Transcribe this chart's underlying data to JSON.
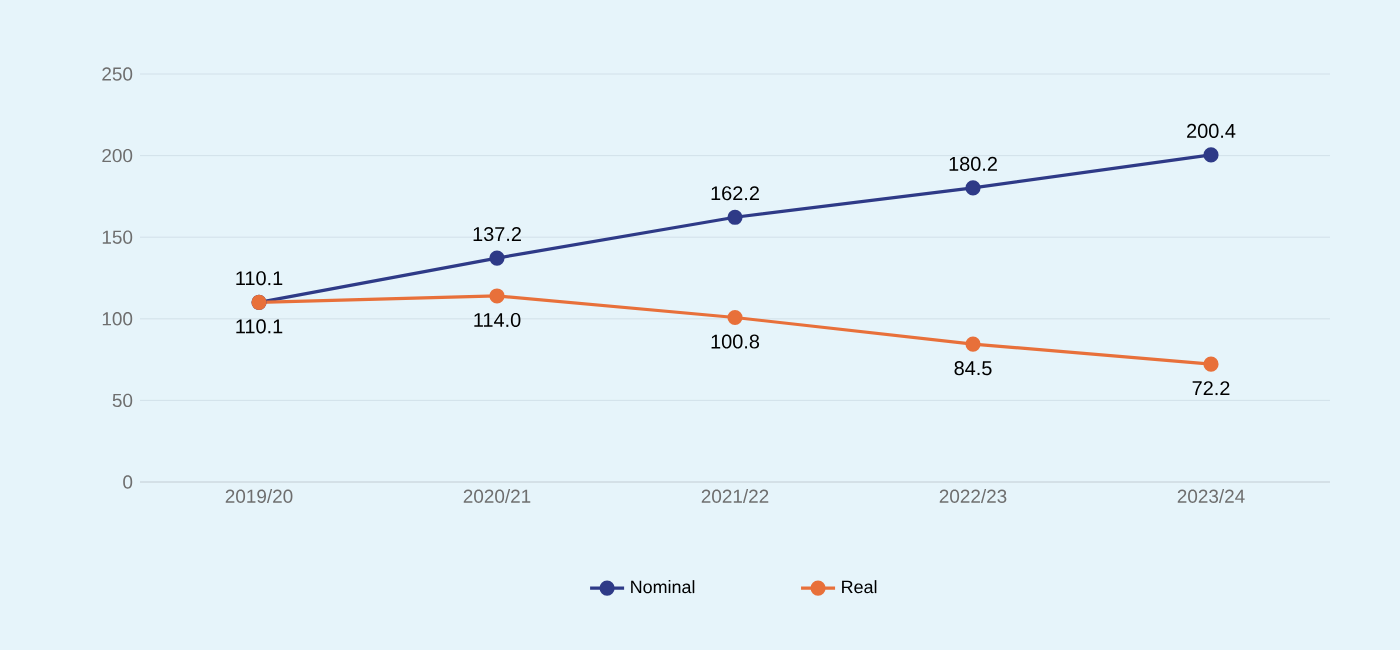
{
  "chart_data": {
    "type": "line",
    "categories": [
      "2019/20",
      "2020/21",
      "2021/22",
      "2022/23",
      "2023/24"
    ],
    "series": [
      {
        "name": "Nominal",
        "color": "#2e3a87",
        "values": [
          110.1,
          137.2,
          162.2,
          180.2,
          200.4
        ],
        "value_labels": [
          "110.1",
          "137.2",
          "162.2",
          "180.2",
          "200.4"
        ]
      },
      {
        "name": "Real",
        "color": "#e8703a",
        "values": [
          110.1,
          114.0,
          100.8,
          84.5,
          72.2
        ],
        "value_labels": [
          "110.1",
          "114.0",
          "100.8",
          "84.5",
          "72.2"
        ]
      }
    ],
    "ylim": [
      0,
      250
    ],
    "yticks": [
      0,
      50,
      100,
      150,
      200,
      250
    ],
    "grid": "y",
    "legend": "bottom",
    "marker": "circle",
    "line_style": "solid"
  }
}
